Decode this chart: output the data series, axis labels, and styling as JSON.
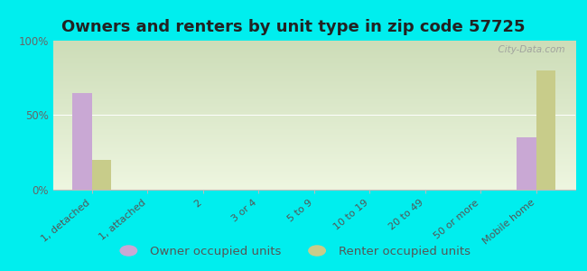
{
  "title": "Owners and renters by unit type in zip code 57725",
  "categories": [
    "1, detached",
    "1, attached",
    "2",
    "3 or 4",
    "5 to 9",
    "10 to 19",
    "20 to 49",
    "50 or more",
    "Mobile home"
  ],
  "owner_values": [
    65,
    0,
    0,
    0,
    0,
    0,
    0,
    0,
    35
  ],
  "renter_values": [
    20,
    0,
    0,
    0,
    0,
    0,
    0,
    0,
    80
  ],
  "owner_color": "#c9a8d4",
  "renter_color": "#c8cc8a",
  "background_outer": "#00eeee",
  "yticks": [
    0,
    50,
    100
  ],
  "ylim": [
    0,
    100
  ],
  "bar_width": 0.35,
  "title_fontsize": 13,
  "legend_fontsize": 9.5,
  "watermark": "  City-Data.com",
  "grad_top": "#cdddb8",
  "grad_bottom": "#eef6e0",
  "spine_color": "#bbbbbb",
  "tick_color": "#666666",
  "title_color": "#222222",
  "label_color": "#555555"
}
